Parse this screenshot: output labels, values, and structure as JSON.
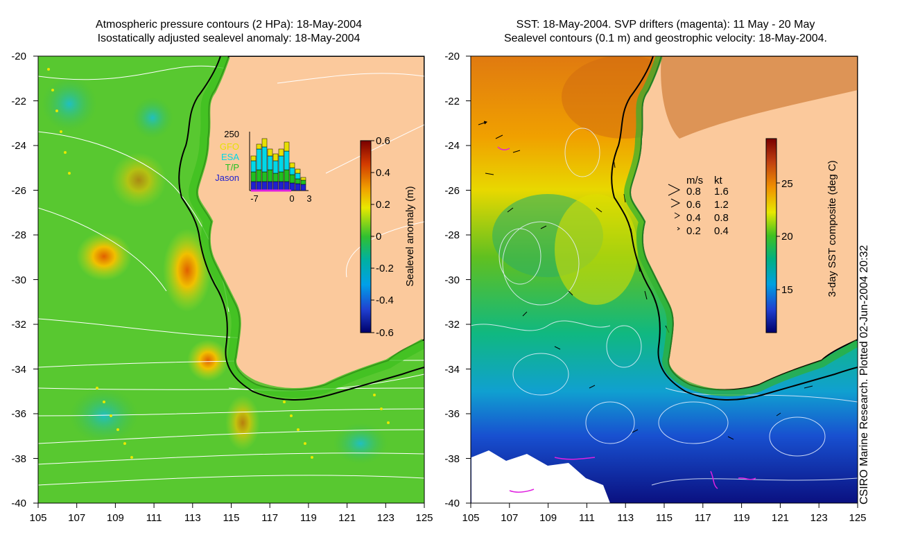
{
  "left_panel": {
    "title_line1": "Atmospheric pressure contours (2 HPa): 18-May-2004",
    "title_line2": "Isostatically adjusted sealevel anomaly: 18-May-2004",
    "y_ticks": [
      "-20",
      "-22",
      "-24",
      "-26",
      "-28",
      "-30",
      "-32",
      "-34",
      "-36",
      "-38",
      "-40"
    ],
    "x_ticks": [
      "105",
      "107",
      "109",
      "111",
      "113",
      "115",
      "117",
      "119",
      "121",
      "123",
      "125"
    ],
    "colorbar": {
      "label": "Sealevel anomaly (m)",
      "ticks": [
        "0.6",
        "0.4",
        "0.2",
        "0",
        "-0.2",
        "-0.4",
        "-0.6"
      ]
    },
    "inset": {
      "ymax_label": "250",
      "legend": [
        "GFO",
        "ESA",
        "T/P",
        "Jason"
      ],
      "x_ticks": [
        "-7",
        "0",
        "3"
      ],
      "colors": {
        "GFO": "#e8e000",
        "ESA": "#00d8e8",
        "T/P": "#20c020",
        "Jason": "#2020d0"
      }
    }
  },
  "right_panel": {
    "title_line1": "SST: 18-May-2004. SVP drifters (magenta): 11 May - 20 May",
    "title_line2": "Sealevel contours (0.1 m) and geostrophic velocity: 18-May-2004.",
    "y_ticks": [
      "-20",
      "-22",
      "-24",
      "-26",
      "-28",
      "-30",
      "-32",
      "-34",
      "-36",
      "-38",
      "-40"
    ],
    "x_ticks": [
      "105",
      "107",
      "109",
      "111",
      "113",
      "115",
      "117",
      "119",
      "121",
      "123",
      "125"
    ],
    "colorbar": {
      "label": "3-day SST composite (deg C)",
      "ticks": [
        "25",
        "20",
        "15"
      ]
    },
    "velocity_legend": {
      "header_ms": "m/s",
      "header_kt": "kt",
      "rows": [
        {
          "ms": "0.8",
          "kt": "1.6"
        },
        {
          "ms": "0.6",
          "kt": "1.2"
        },
        {
          "ms": "0.4",
          "kt": "0.8"
        },
        {
          "ms": "0.2",
          "kt": "0.4"
        }
      ]
    }
  },
  "credit": "CSIRO Marine Research. Plotted 02-Jun-2004 20:32",
  "colors": {
    "land": "#fbc99c",
    "coast": "#000000",
    "drifter": "#e020e0"
  }
}
